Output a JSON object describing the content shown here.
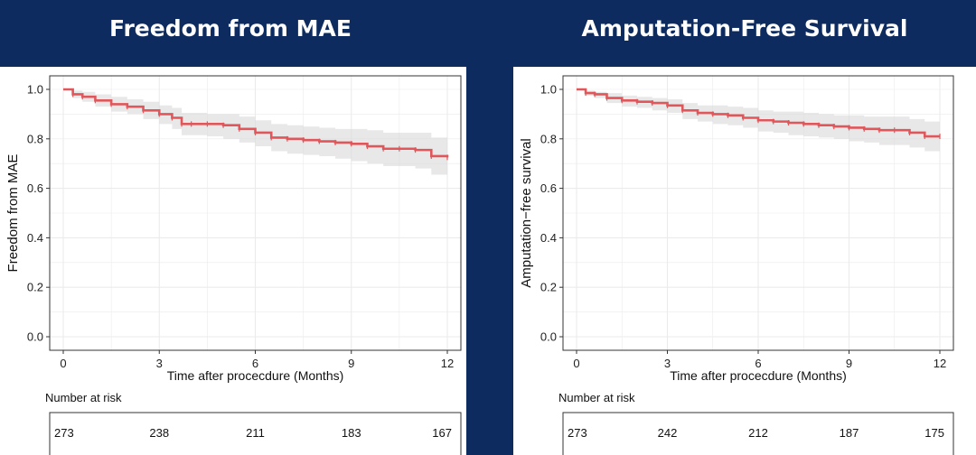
{
  "titles": {
    "left": "Freedom from MAE",
    "right": "Amputation-Free Survival"
  },
  "colors": {
    "background": "#0d2b5e",
    "curve": "#e0575b",
    "band": "#d9d9d9",
    "grid": "#ebebeb"
  },
  "chart_data": [
    {
      "type": "line",
      "title": "Freedom from MAE",
      "xlabel": "Time after procecdure (Months)",
      "ylabel": "Freedom from MAE",
      "xlim": [
        0,
        12
      ],
      "ylim": [
        0,
        1
      ],
      "x_ticks": [
        "0",
        "3",
        "6",
        "9",
        "12"
      ],
      "y_ticks": [
        "0.0",
        "0.2",
        "0.4",
        "0.6",
        "0.8",
        "1.0"
      ],
      "series": [
        {
          "name": "Freedom from MAE",
          "x": [
            0,
            0.3,
            0.6,
            1.0,
            1.5,
            2.0,
            2.5,
            3.0,
            3.4,
            3.7,
            4.0,
            4.5,
            5.0,
            5.5,
            6.0,
            6.5,
            7.0,
            7.5,
            8.0,
            8.5,
            9.0,
            9.5,
            10.0,
            10.5,
            11.0,
            11.5,
            12.0
          ],
          "y": [
            1.0,
            0.98,
            0.97,
            0.955,
            0.94,
            0.93,
            0.915,
            0.9,
            0.885,
            0.86,
            0.86,
            0.86,
            0.855,
            0.84,
            0.825,
            0.805,
            0.8,
            0.795,
            0.79,
            0.785,
            0.78,
            0.77,
            0.76,
            0.76,
            0.755,
            0.73,
            0.725
          ],
          "ci_lower": [
            1.0,
            0.965,
            0.95,
            0.93,
            0.91,
            0.9,
            0.88,
            0.86,
            0.84,
            0.815,
            0.815,
            0.81,
            0.8,
            0.785,
            0.77,
            0.75,
            0.74,
            0.735,
            0.73,
            0.72,
            0.71,
            0.7,
            0.69,
            0.69,
            0.68,
            0.655,
            0.645
          ],
          "ci_upper": [
            1.0,
            0.995,
            0.99,
            0.98,
            0.97,
            0.96,
            0.95,
            0.935,
            0.925,
            0.905,
            0.905,
            0.9,
            0.9,
            0.89,
            0.875,
            0.86,
            0.855,
            0.85,
            0.845,
            0.84,
            0.84,
            0.835,
            0.825,
            0.825,
            0.825,
            0.805,
            0.8
          ]
        }
      ],
      "risk_table": {
        "label": "Number at risk",
        "values": [
          "273",
          "238",
          "211",
          "183",
          "167"
        ]
      }
    },
    {
      "type": "line",
      "title": "Amputation-Free Survival",
      "xlabel": "Time after procecdure (Months)",
      "ylabel": "Amputation−free survival",
      "xlim": [
        0,
        12
      ],
      "ylim": [
        0,
        1
      ],
      "x_ticks": [
        "0",
        "3",
        "6",
        "9",
        "12"
      ],
      "y_ticks": [
        "0.0",
        "0.2",
        "0.4",
        "0.6",
        "0.8",
        "1.0"
      ],
      "series": [
        {
          "name": "Amputation-free survival",
          "x": [
            0,
            0.3,
            0.6,
            1.0,
            1.5,
            2.0,
            2.5,
            3.0,
            3.5,
            4.0,
            4.5,
            5.0,
            5.5,
            6.0,
            6.5,
            7.0,
            7.5,
            8.0,
            8.5,
            9.0,
            9.5,
            10.0,
            10.5,
            11.0,
            11.5,
            12.0
          ],
          "y": [
            1.0,
            0.985,
            0.98,
            0.965,
            0.955,
            0.95,
            0.945,
            0.935,
            0.915,
            0.905,
            0.9,
            0.895,
            0.885,
            0.875,
            0.87,
            0.865,
            0.86,
            0.855,
            0.85,
            0.845,
            0.84,
            0.835,
            0.835,
            0.825,
            0.81,
            0.81
          ],
          "ci_lower": [
            1.0,
            0.975,
            0.965,
            0.945,
            0.93,
            0.925,
            0.915,
            0.905,
            0.88,
            0.87,
            0.86,
            0.855,
            0.845,
            0.83,
            0.825,
            0.815,
            0.81,
            0.805,
            0.8,
            0.79,
            0.785,
            0.775,
            0.775,
            0.765,
            0.75,
            0.745
          ],
          "ci_upper": [
            1.0,
            0.995,
            0.99,
            0.985,
            0.975,
            0.97,
            0.965,
            0.96,
            0.945,
            0.935,
            0.935,
            0.93,
            0.925,
            0.915,
            0.91,
            0.91,
            0.905,
            0.9,
            0.895,
            0.895,
            0.89,
            0.89,
            0.89,
            0.88,
            0.87,
            0.87
          ]
        }
      ],
      "risk_table": {
        "label": "Number at risk",
        "values": [
          "273",
          "242",
          "212",
          "187",
          "175"
        ]
      }
    }
  ]
}
